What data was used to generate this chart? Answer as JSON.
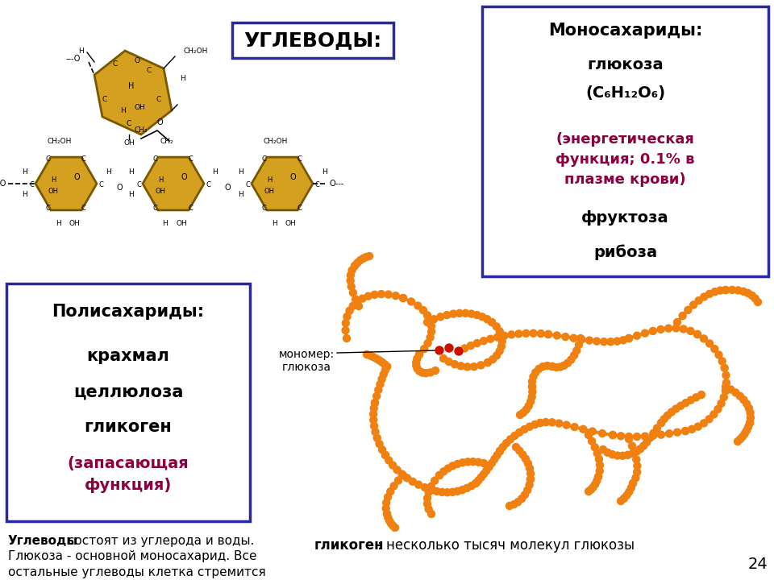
{
  "bg_color": "#ffffff",
  "title_text": "УГЛЕВОДЫ:",
  "box_border_color": "#2828a0",
  "mono_box_title": "Моносахариды:",
  "mono_line1": "глюкоза",
  "mono_line2": "(С₆H₁₂O₆)",
  "mono_line3": "(энергетическая\nфункция; 0.1% в\nплазме крови)",
  "mono_line4": "фруктоза",
  "mono_line5": "рибоза",
  "mono_color_dark": "#000000",
  "mono_color_red": "#8b0040",
  "poly_box_title": "Полисахариды:",
  "poly_line1": "крахмал",
  "poly_line2": "целлюлоза",
  "poly_line3": "гликоген",
  "poly_line4": "(запасающая\nфункция)",
  "poly_color_dark": "#000000",
  "poly_color_red": "#8b0040",
  "bottom_bold": "Углеводы",
  "bottom_rest": " состоят из углерода и воды.\nГлюкоза - основной моносахарид. Все\nостальные углеводы клетка стремится\nперевести в глюкозу, а потом уже ее\nиспользовать.",
  "glycogen_bold": "гликоген",
  "glycogen_rest": ": несколько тысяч молекул глюкозы",
  "monomer_label": "мономер:\nглюкоза",
  "page_number": "24",
  "sugar_color": "#D4A020",
  "sugar_edge": "#7a5800",
  "red_color": "#cc1100",
  "chain_color": "#F08010"
}
